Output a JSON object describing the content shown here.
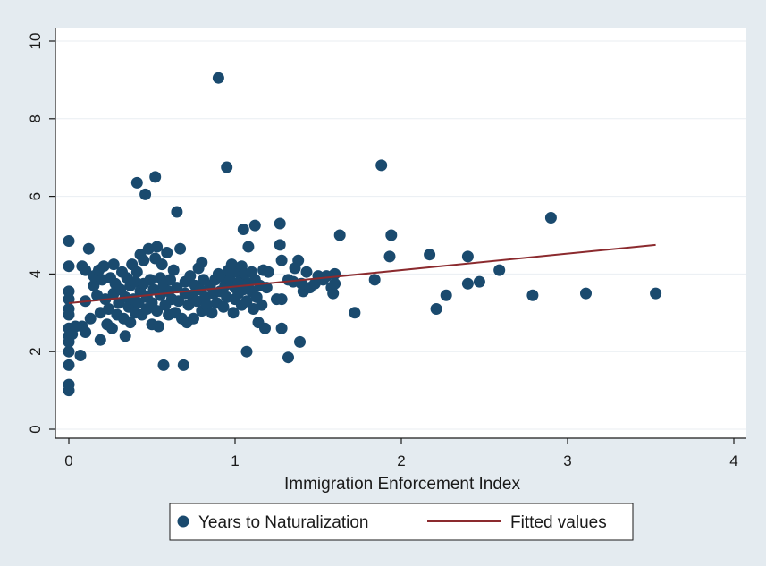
{
  "chart_data": {
    "type": "scatter",
    "xlabel": "Immigration Enforcement Index",
    "ylabel": "",
    "xlim": [
      0,
      4
    ],
    "ylim": [
      0,
      10
    ],
    "x_ticks": [
      0,
      1,
      2,
      3,
      4
    ],
    "y_ticks": [
      0,
      2,
      4,
      6,
      8,
      10
    ],
    "x_tick_labels": [
      "0",
      "1",
      "2",
      "3",
      "4"
    ],
    "y_tick_labels": [
      "0",
      "2",
      "4",
      "6",
      "8",
      "10"
    ],
    "grid": "horizontal",
    "legend_position": "bottom",
    "colors": {
      "points": "#1a4a6e",
      "fit": "#8b2a2e",
      "background": "#e4ebf0",
      "plot": "#ffffff",
      "grid": "#e9eef2"
    },
    "series": [
      {
        "name": "Years to Naturalization",
        "type": "scatter",
        "points": [
          [
            0.0,
            4.85
          ],
          [
            0.0,
            4.2
          ],
          [
            0.0,
            3.55
          ],
          [
            0.0,
            3.35
          ],
          [
            0.0,
            3.1
          ],
          [
            0.0,
            2.95
          ],
          [
            0.0,
            2.6
          ],
          [
            0.0,
            2.4
          ],
          [
            0.0,
            2.25
          ],
          [
            0.0,
            2.0
          ],
          [
            0.0,
            1.65
          ],
          [
            0.0,
            1.15
          ],
          [
            0.0,
            1.0
          ],
          [
            0.02,
            2.45
          ],
          [
            0.04,
            2.65
          ],
          [
            0.07,
            1.9
          ],
          [
            0.08,
            4.2
          ],
          [
            0.08,
            2.65
          ],
          [
            0.1,
            4.1
          ],
          [
            0.1,
            3.3
          ],
          [
            0.1,
            2.5
          ],
          [
            0.12,
            4.65
          ],
          [
            0.13,
            2.85
          ],
          [
            0.15,
            3.7
          ],
          [
            0.15,
            3.95
          ],
          [
            0.17,
            3.45
          ],
          [
            0.18,
            4.1
          ],
          [
            0.19,
            3.0
          ],
          [
            0.19,
            2.3
          ],
          [
            0.2,
            3.85
          ],
          [
            0.21,
            4.2
          ],
          [
            0.22,
            3.35
          ],
          [
            0.23,
            2.7
          ],
          [
            0.24,
            3.1
          ],
          [
            0.25,
            3.9
          ],
          [
            0.26,
            2.6
          ],
          [
            0.27,
            3.5
          ],
          [
            0.27,
            4.25
          ],
          [
            0.28,
            3.75
          ],
          [
            0.29,
            2.95
          ],
          [
            0.3,
            3.25
          ],
          [
            0.31,
            3.6
          ],
          [
            0.32,
            4.05
          ],
          [
            0.33,
            2.85
          ],
          [
            0.34,
            3.4
          ],
          [
            0.34,
            2.4
          ],
          [
            0.35,
            3.9
          ],
          [
            0.36,
            3.15
          ],
          [
            0.37,
            3.7
          ],
          [
            0.37,
            2.75
          ],
          [
            0.38,
            4.25
          ],
          [
            0.39,
            3.35
          ],
          [
            0.4,
            3.0
          ],
          [
            0.4,
            3.8
          ],
          [
            0.41,
            4.05
          ],
          [
            0.41,
            6.35
          ],
          [
            0.42,
            3.25
          ],
          [
            0.43,
            4.5
          ],
          [
            0.43,
            3.55
          ],
          [
            0.44,
            2.95
          ],
          [
            0.45,
            3.75
          ],
          [
            0.45,
            4.35
          ],
          [
            0.46,
            6.05
          ],
          [
            0.47,
            3.4
          ],
          [
            0.47,
            3.1
          ],
          [
            0.48,
            4.65
          ],
          [
            0.49,
            3.85
          ],
          [
            0.5,
            3.25
          ],
          [
            0.5,
            2.7
          ],
          [
            0.51,
            3.6
          ],
          [
            0.52,
            4.4
          ],
          [
            0.52,
            6.5
          ],
          [
            0.53,
            3.05
          ],
          [
            0.53,
            4.7
          ],
          [
            0.54,
            2.65
          ],
          [
            0.55,
            3.9
          ],
          [
            0.55,
            3.45
          ],
          [
            0.56,
            4.25
          ],
          [
            0.57,
            3.7
          ],
          [
            0.57,
            1.65
          ],
          [
            0.58,
            3.2
          ],
          [
            0.59,
            4.55
          ],
          [
            0.6,
            2.95
          ],
          [
            0.6,
            3.55
          ],
          [
            0.61,
            3.85
          ],
          [
            0.62,
            3.35
          ],
          [
            0.63,
            4.1
          ],
          [
            0.64,
            3.0
          ],
          [
            0.65,
            5.6
          ],
          [
            0.65,
            3.65
          ],
          [
            0.66,
            3.3
          ],
          [
            0.67,
            4.65
          ],
          [
            0.68,
            2.85
          ],
          [
            0.69,
            1.65
          ],
          [
            0.7,
            3.5
          ],
          [
            0.7,
            3.8
          ],
          [
            0.71,
            2.75
          ],
          [
            0.72,
            3.2
          ],
          [
            0.73,
            3.95
          ],
          [
            0.74,
            3.45
          ],
          [
            0.75,
            2.85
          ],
          [
            0.76,
            3.7
          ],
          [
            0.77,
            3.3
          ],
          [
            0.78,
            4.15
          ],
          [
            0.79,
            3.6
          ],
          [
            0.8,
            4.3
          ],
          [
            0.8,
            3.05
          ],
          [
            0.81,
            3.85
          ],
          [
            0.82,
            3.4
          ],
          [
            0.83,
            3.2
          ],
          [
            0.85,
            3.7
          ],
          [
            0.86,
            3.0
          ],
          [
            0.87,
            3.5
          ],
          [
            0.88,
            3.85
          ],
          [
            0.89,
            3.25
          ],
          [
            0.9,
            9.05
          ],
          [
            0.9,
            4.0
          ],
          [
            0.91,
            3.55
          ],
          [
            0.92,
            3.95
          ],
          [
            0.93,
            3.15
          ],
          [
            0.94,
            3.7
          ],
          [
            0.95,
            6.75
          ],
          [
            0.95,
            3.4
          ],
          [
            0.96,
            4.1
          ],
          [
            0.97,
            3.85
          ],
          [
            0.98,
            4.25
          ],
          [
            0.99,
            3.0
          ],
          [
            1.0,
            3.65
          ],
          [
            1.0,
            3.35
          ],
          [
            1.01,
            4.05
          ],
          [
            1.02,
            3.5
          ],
          [
            1.03,
            3.8
          ],
          [
            1.04,
            4.2
          ],
          [
            1.04,
            3.2
          ],
          [
            1.05,
            5.15
          ],
          [
            1.05,
            3.6
          ],
          [
            1.06,
            4.0
          ],
          [
            1.07,
            3.3
          ],
          [
            1.07,
            2.0
          ],
          [
            1.08,
            4.7
          ],
          [
            1.08,
            3.75
          ],
          [
            1.1,
            3.55
          ],
          [
            1.1,
            4.05
          ],
          [
            1.11,
            3.1
          ],
          [
            1.12,
            5.25
          ],
          [
            1.12,
            3.85
          ],
          [
            1.13,
            3.4
          ],
          [
            1.14,
            2.75
          ],
          [
            1.15,
            3.7
          ],
          [
            1.16,
            3.2
          ],
          [
            1.17,
            4.1
          ],
          [
            1.18,
            2.6
          ],
          [
            1.19,
            3.65
          ],
          [
            1.2,
            4.05
          ],
          [
            1.25,
            3.35
          ],
          [
            1.27,
            4.75
          ],
          [
            1.27,
            5.3
          ],
          [
            1.28,
            4.35
          ],
          [
            1.28,
            3.35
          ],
          [
            1.28,
            2.6
          ],
          [
            1.32,
            3.85
          ],
          [
            1.32,
            1.85
          ],
          [
            1.35,
            3.8
          ],
          [
            1.36,
            4.15
          ],
          [
            1.38,
            4.35
          ],
          [
            1.39,
            2.25
          ],
          [
            1.4,
            3.75
          ],
          [
            1.41,
            3.55
          ],
          [
            1.43,
            4.05
          ],
          [
            1.45,
            3.65
          ],
          [
            1.48,
            3.75
          ],
          [
            1.5,
            3.95
          ],
          [
            1.53,
            3.85
          ],
          [
            1.55,
            3.95
          ],
          [
            1.58,
            3.65
          ],
          [
            1.59,
            3.5
          ],
          [
            1.6,
            3.75
          ],
          [
            1.6,
            4.0
          ],
          [
            1.63,
            5.0
          ],
          [
            1.72,
            3.0
          ],
          [
            1.84,
            3.85
          ],
          [
            1.88,
            6.8
          ],
          [
            1.93,
            4.45
          ],
          [
            1.94,
            5.0
          ],
          [
            2.17,
            4.5
          ],
          [
            2.21,
            3.1
          ],
          [
            2.27,
            3.45
          ],
          [
            2.4,
            4.45
          ],
          [
            2.4,
            3.75
          ],
          [
            2.47,
            3.8
          ],
          [
            2.59,
            4.1
          ],
          [
            2.79,
            3.45
          ],
          [
            2.9,
            5.45
          ],
          [
            3.11,
            3.5
          ],
          [
            3.53,
            3.5
          ]
        ]
      },
      {
        "name": "Fitted values",
        "type": "line",
        "points": [
          [
            0.0,
            3.25
          ],
          [
            3.53,
            4.75
          ]
        ]
      }
    ]
  }
}
